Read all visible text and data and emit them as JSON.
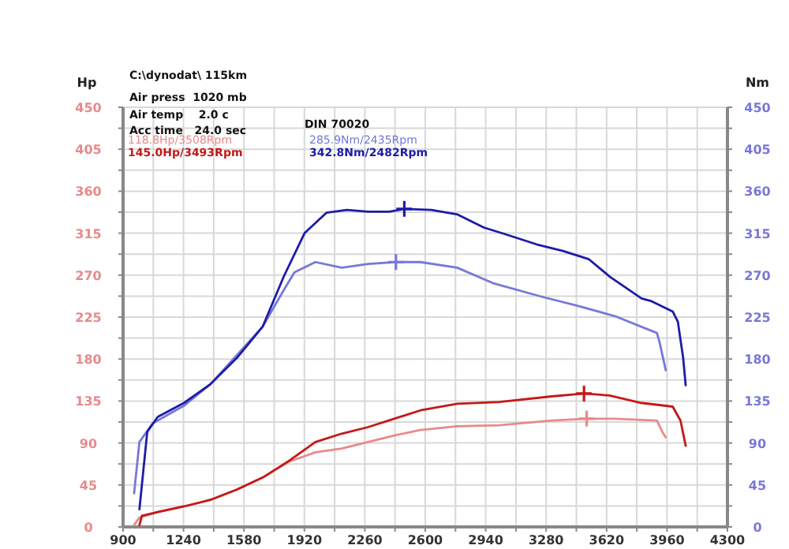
{
  "chart_data": {
    "type": "line",
    "ylabel": "Hp",
    "y2label": "Nm",
    "xlim": [
      900,
      4300
    ],
    "xticks": [
      900,
      {
        "value": 1070,
        "label": null
      },
      1240,
      {
        "value": 1410,
        "label": null
      },
      1580,
      {
        "value": 1750,
        "label": null
      },
      1920,
      {
        "value": 2090,
        "label": null
      },
      2260,
      {
        "value": 2430,
        "label": null
      },
      2600,
      {
        "value": 2770,
        "label": null
      },
      2940,
      {
        "value": 3110,
        "label": null
      },
      3280,
      {
        "value": 3450,
        "label": null
      },
      3620,
      {
        "value": 3790,
        "label": null
      },
      3960,
      {
        "value": 4130,
        "label": null
      },
      4300
    ],
    "ylim": [
      0,
      450
    ],
    "yticks": [
      0,
      {
        "value": 22.5,
        "label": null
      },
      45,
      {
        "value": 67.5,
        "label": null
      },
      90,
      {
        "value": 112.5,
        "label": null
      },
      135,
      {
        "value": 157.5,
        "label": null
      },
      180,
      {
        "value": 202.5,
        "label": null
      },
      225,
      {
        "value": 247.5,
        "label": null
      },
      270,
      {
        "value": 292.5,
        "label": null
      },
      315,
      {
        "value": 337.5,
        "label": null
      },
      360,
      {
        "value": 382.5,
        "label": null
      },
      405,
      {
        "value": 427.5,
        "label": null
      },
      450
    ],
    "y2lim": [
      0,
      450
    ],
    "y2ticks": [
      0,
      {
        "value": 22.5,
        "label": null
      },
      45,
      {
        "value": 67.5,
        "label": null
      },
      90,
      {
        "value": 112.5,
        "label": null
      },
      135,
      {
        "value": 157.5,
        "label": null
      },
      180,
      {
        "value": 202.5,
        "label": null
      },
      225,
      {
        "value": 247.5,
        "label": null
      },
      270,
      {
        "value": 292.5,
        "label": null
      },
      315,
      {
        "value": 337.5,
        "label": null
      },
      360,
      {
        "value": 382.5,
        "label": null
      },
      405,
      {
        "value": 427.5,
        "label": null
      },
      450
    ],
    "grid": true,
    "line_style": "solid",
    "marker": "none",
    "series": [
      {
        "color": "#e88a8a",
        "x": [
          962,
          992,
          1095,
          1243,
          1391,
          1539,
          1686,
          1834,
          1982,
          2130,
          2278,
          2425,
          2573,
          2780,
          3016,
          3312,
          3508,
          3667,
          3903,
          3933,
          3953
        ],
        "values": [
          2,
          10,
          16,
          22,
          29,
          40,
          53,
          70,
          80,
          84,
          91,
          98,
          104,
          108,
          109,
          114,
          116,
          116,
          114,
          102,
          96
        ]
      },
      {
        "color": "#c41818",
        "x": [
          992,
          1006,
          1095,
          1243,
          1391,
          1539,
          1686,
          1834,
          1982,
          2130,
          2278,
          2425,
          2573,
          2780,
          3016,
          3312,
          3493,
          3636,
          3814,
          3992,
          4036,
          4065
        ],
        "values": [
          2,
          12,
          16,
          22,
          29,
          40,
          53,
          71,
          91,
          100,
          107,
          116,
          125,
          132,
          134,
          140,
          143,
          141,
          133,
          129,
          114,
          87
        ]
      },
      {
        "color": "#7878d8",
        "axis": "y2",
        "x": [
          962,
          992,
          1066,
          1243,
          1391,
          1539,
          1686,
          1804,
          1864,
          1982,
          2130,
          2278,
          2435,
          2573,
          2780,
          2987,
          3253,
          3460,
          3667,
          3903,
          3918,
          3953
        ],
        "values": [
          36,
          91,
          111,
          130,
          153,
          184,
          215,
          254,
          273,
          284,
          278,
          282,
          284,
          284,
          278,
          261,
          247,
          237,
          226,
          208,
          198,
          168
        ]
      },
      {
        "color": "#1c1ca8",
        "axis": "y2",
        "x": [
          992,
          1036,
          1095,
          1243,
          1391,
          1539,
          1686,
          1805,
          1921,
          2045,
          2160,
          2278,
          2398,
          2482,
          2634,
          2782,
          2930,
          3048,
          3226,
          3374,
          3521,
          3640,
          3817,
          3874,
          3992,
          4021,
          4051,
          4065
        ],
        "values": [
          19,
          102,
          118,
          133,
          153,
          181,
          215,
          269,
          315,
          337,
          340,
          338,
          338,
          341,
          340,
          335,
          321,
          314,
          303,
          296,
          287,
          268,
          245,
          242,
          231,
          220,
          181,
          152
        ]
      },
      {
        "type": "scatter",
        "marker": "cross",
        "color": "#e88a8a",
        "x": [
          3508
        ],
        "values": [
          116
        ]
      },
      {
        "type": "scatter",
        "marker": "cross",
        "color": "#c41818",
        "x": [
          3493
        ],
        "values": [
          143
        ]
      },
      {
        "type": "scatter",
        "marker": "cross",
        "color": "#7878d8",
        "axis": "y2",
        "x": [
          2435
        ],
        "values": [
          284
        ]
      },
      {
        "type": "scatter",
        "marker": "cross",
        "color": "#1c1ca8",
        "axis": "y2",
        "x": [
          2482
        ],
        "values": [
          341
        ]
      }
    ],
    "annotations": [
      "C:\\dynodat\\ 115km",
      "Air press  1020 mb",
      "Air temp    2.0 c",
      "Acc time   24.0 sec",
      "DIN 70020",
      "118.8Hp/3508Rpm",
      "145.0Hp/3493Rpm",
      "285.9Nm/2435Rpm",
      "342.8Nm/2482Rpm"
    ]
  }
}
